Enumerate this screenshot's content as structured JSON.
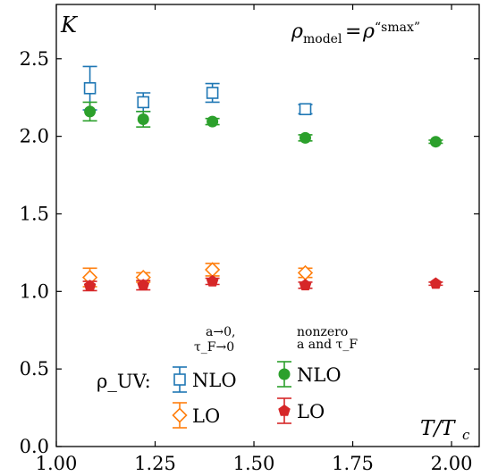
{
  "chart_data": {
    "type": "scatter",
    "title": "",
    "ylabel": "K",
    "xlabel": "T/T_c",
    "annotation": "ρ_model = ρ_“smax”",
    "xlim": [
      1.0,
      2.07
    ],
    "ylim": [
      0.0,
      2.85
    ],
    "x_ticks": [
      "1.00",
      "1.25",
      "1.50",
      "1.75",
      "2.00"
    ],
    "y_ticks": [
      "0.0",
      "0.5",
      "1.0",
      "1.5",
      "2.0",
      "2.5"
    ],
    "legend": {
      "row_label": "ρ_UV:",
      "col1_header_line1": "a→0,",
      "col1_header_line2": "τ_F→0",
      "col2_header_line1": "nonzero",
      "col2_header_line2": "a and τ_F",
      "placement": "bottom-center"
    },
    "colors": {
      "blue": "#1f77b4",
      "orange": "#ff7f0e",
      "green": "#2ca02c",
      "red": "#d62728"
    },
    "series": [
      {
        "name": "NLO",
        "group": "a→0, τ_F→0",
        "marker": "square-open",
        "color": "#1f77b4",
        "points": [
          {
            "x": 1.085,
            "y": 2.31,
            "err": 0.14
          },
          {
            "x": 1.22,
            "y": 2.22,
            "err": 0.06
          },
          {
            "x": 1.395,
            "y": 2.28,
            "err": 0.06
          },
          {
            "x": 1.63,
            "y": 2.175,
            "err": 0.03
          }
        ]
      },
      {
        "name": "LO",
        "group": "a→0, τ_F→0",
        "marker": "diamond-open",
        "color": "#ff7f0e",
        "points": [
          {
            "x": 1.085,
            "y": 1.09,
            "err": 0.06
          },
          {
            "x": 1.22,
            "y": 1.09,
            "err": 0.03
          },
          {
            "x": 1.395,
            "y": 1.14,
            "err": 0.04
          },
          {
            "x": 1.63,
            "y": 1.12,
            "err": 0.03
          }
        ]
      },
      {
        "name": "NLO",
        "group": "nonzero a and τ_F",
        "marker": "circle-filled",
        "color": "#2ca02c",
        "points": [
          {
            "x": 1.085,
            "y": 2.16,
            "err": 0.06
          },
          {
            "x": 1.22,
            "y": 2.11,
            "err": 0.05
          },
          {
            "x": 1.395,
            "y": 2.095,
            "err": 0.02
          },
          {
            "x": 1.63,
            "y": 1.99,
            "err": 0.02
          },
          {
            "x": 1.96,
            "y": 1.965,
            "err": 0.01
          }
        ]
      },
      {
        "name": "LO",
        "group": "nonzero a and τ_F",
        "marker": "pentagon-filled",
        "color": "#d62728",
        "points": [
          {
            "x": 1.085,
            "y": 1.035,
            "err": 0.03
          },
          {
            "x": 1.22,
            "y": 1.04,
            "err": 0.03
          },
          {
            "x": 1.395,
            "y": 1.065,
            "err": 0.02
          },
          {
            "x": 1.63,
            "y": 1.04,
            "err": 0.02
          },
          {
            "x": 1.96,
            "y": 1.05,
            "err": 0.01
          }
        ]
      }
    ]
  }
}
